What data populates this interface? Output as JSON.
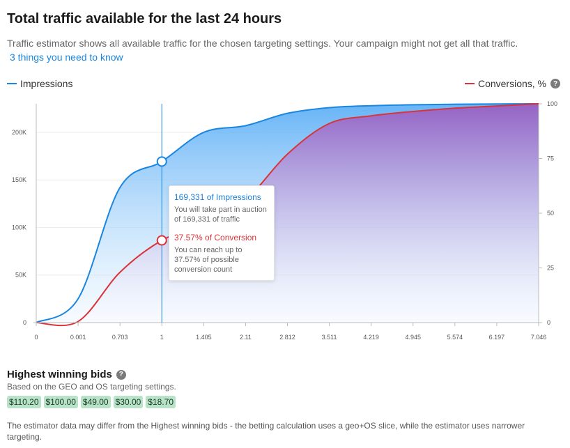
{
  "header": {
    "title": "Total traffic available for the last 24 hours",
    "subtitle": "Traffic estimator shows all available traffic for the chosen targeting settings. Your campaign might not get all that traffic.",
    "link": "3 things you need to know"
  },
  "legend": {
    "impressions": "Impressions",
    "conversions": "Conversions, %",
    "help_icon": "question-icon"
  },
  "colors": {
    "impressions": "#1a86e0",
    "conversions": "#d9343a",
    "impressions_fill": "#6ab4f5",
    "conversions_fill": "#a066c4",
    "bid_chip": "#b9e3c8"
  },
  "chart_data": {
    "type": "area",
    "x_tick_labels": [
      "0",
      "0.001",
      "0.703",
      "1",
      "1.405",
      "2.11",
      "2.812",
      "3.511",
      "4.219",
      "4.945",
      "5.574",
      "6.197",
      "7.046"
    ],
    "y_left": {
      "ticks": [
        "0",
        "50K",
        "100K",
        "150K",
        "200K"
      ],
      "range": [
        0,
        230000
      ]
    },
    "y_right": {
      "ticks": [
        "0",
        "25",
        "50",
        "75",
        "100"
      ],
      "range": [
        0,
        100
      ]
    },
    "grid": true,
    "series": [
      {
        "name": "Impressions",
        "axis": "left",
        "values": [
          0,
          25000,
          142000,
          169331,
          200000,
          207000,
          220000,
          226000,
          228000,
          229000,
          229500,
          229800,
          230000
        ]
      },
      {
        "name": "Conversions, %",
        "axis": "right",
        "values": [
          0,
          0.5,
          23,
          37.57,
          45,
          56,
          77,
          91,
          94.5,
          96.5,
          98,
          99,
          100
        ]
      }
    ],
    "selected_index": 3
  },
  "tooltip": {
    "impressions_title": "169,331 of Impressions",
    "impressions_text": "You will take part in auction of 169,331 of traffic",
    "conversion_title": "37.57% of Conversion",
    "conversion_text": "You can reach up to 37.57% of possible conversion count"
  },
  "bids_section": {
    "title": "Highest winning bids",
    "subtitle": "Based on the GEO and OS targeting settings.",
    "bids": [
      "$110.20",
      "$100.00",
      "$49.00",
      "$30.00",
      "$18.70"
    ]
  },
  "footnote": "The estimator data may differ from the Highest winning bids - the betting calculation uses a geo+OS slice, while the estimator uses narrower targeting."
}
